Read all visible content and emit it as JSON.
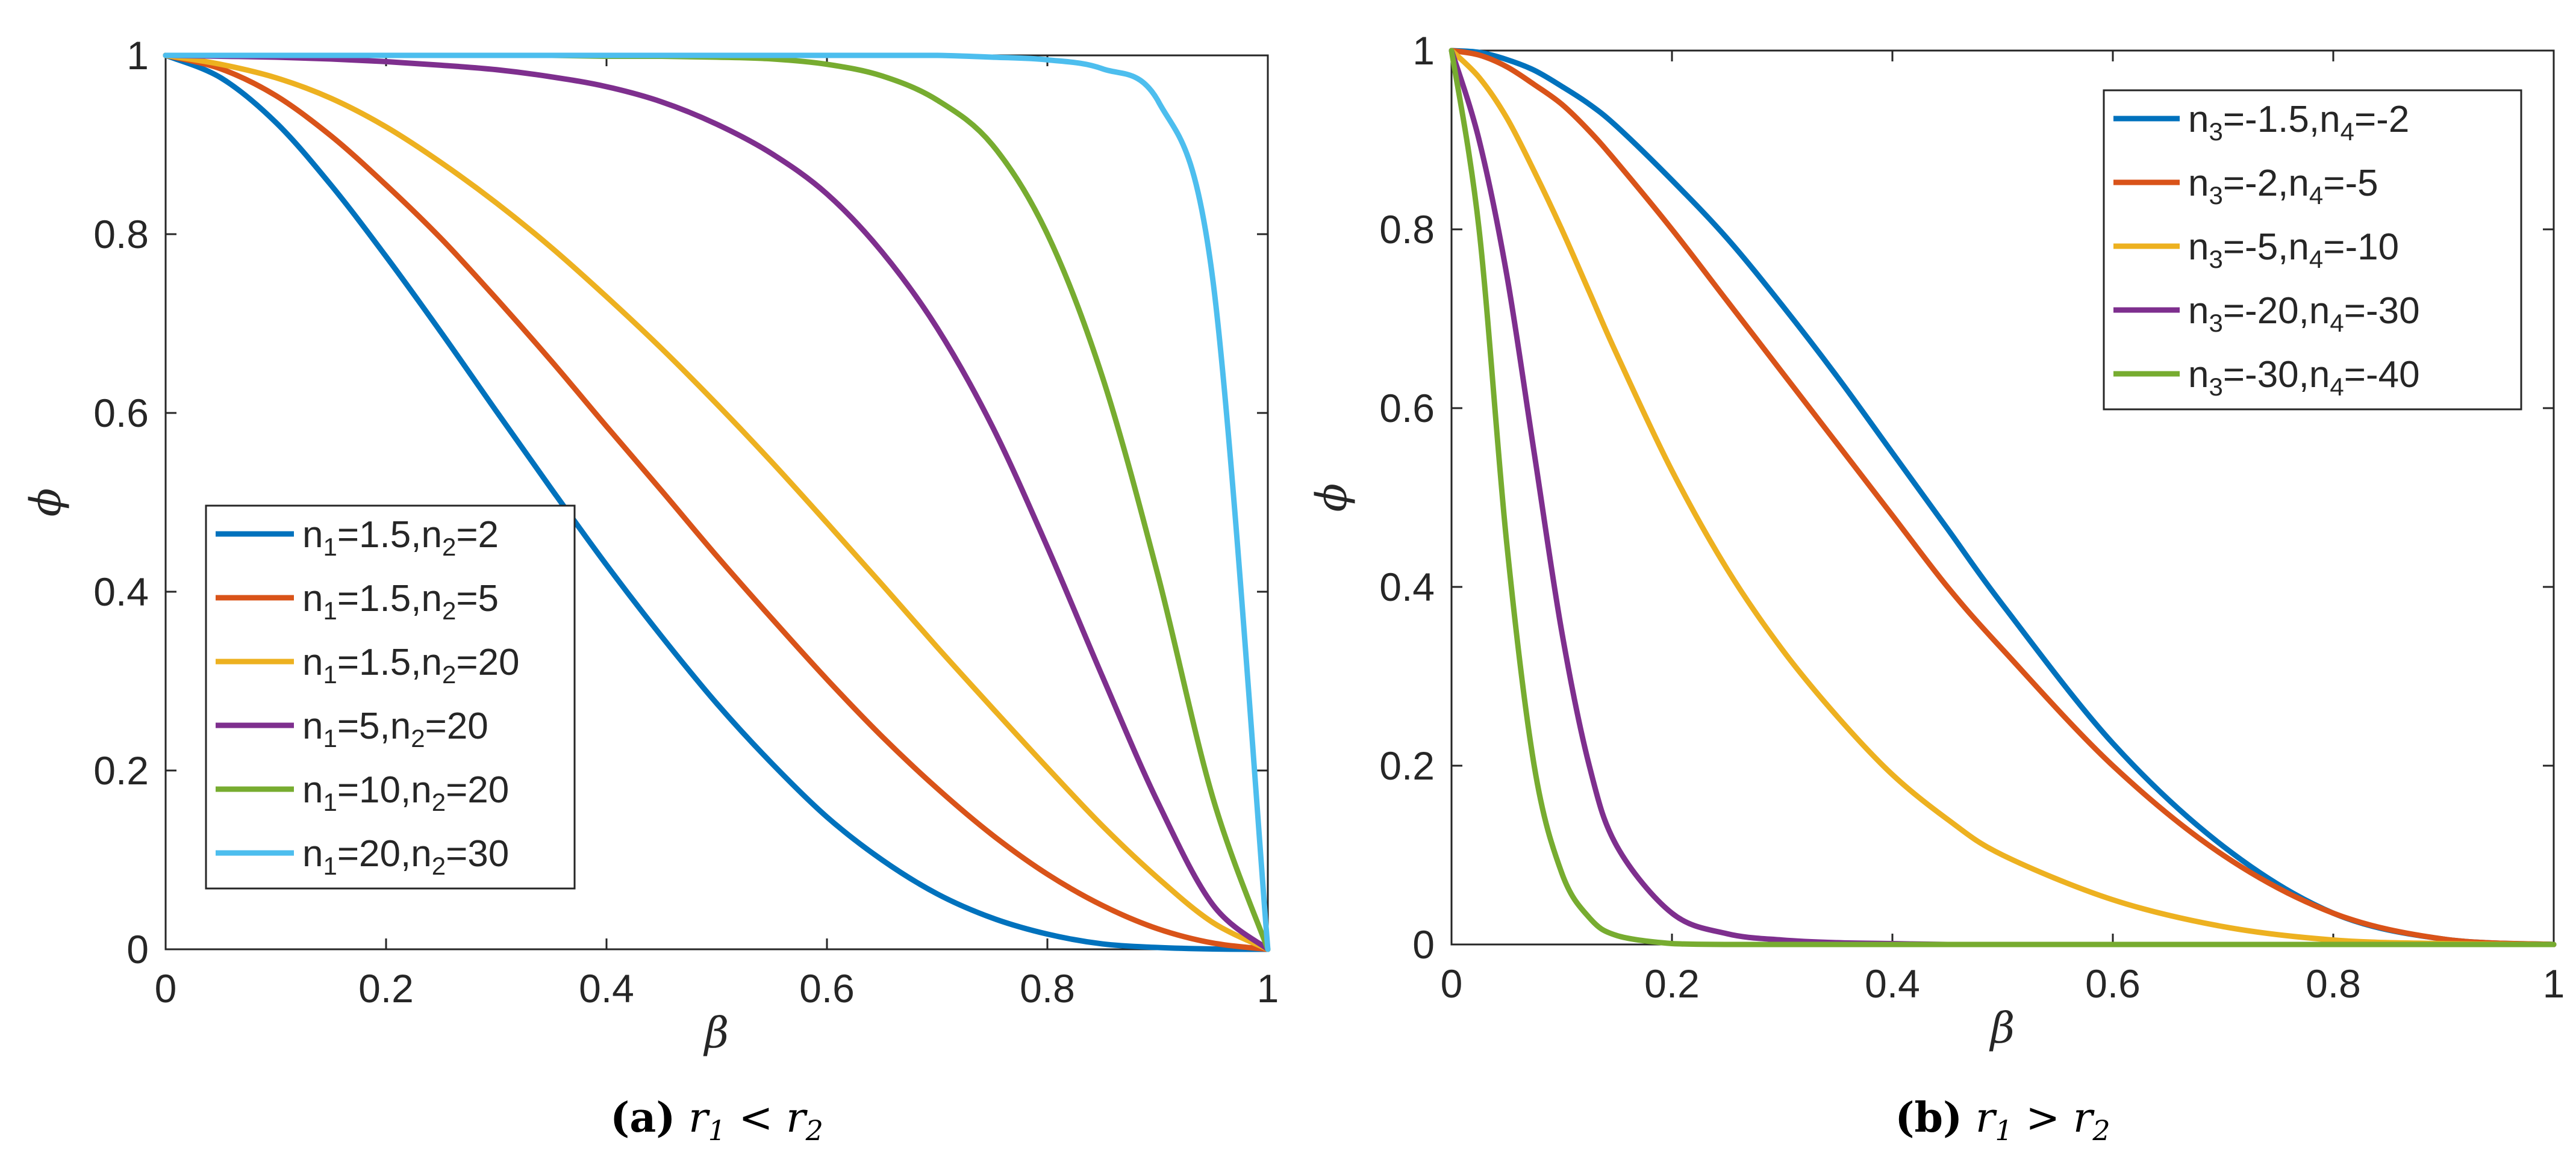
{
  "colors": {
    "axis": "#262626",
    "series": [
      "#0072BD",
      "#D95319",
      "#EDB120",
      "#7E2F8E",
      "#77AC30",
      "#4DBEEE"
    ]
  },
  "chart_data": [
    {
      "type": "line",
      "panel": "a",
      "xlabel": "β",
      "ylabel": "ϕ",
      "xlim": [
        0,
        1
      ],
      "ylim": [
        0,
        1
      ],
      "xticks": [
        0,
        0.2,
        0.4,
        0.6,
        0.8,
        1
      ],
      "yticks": [
        0,
        0.2,
        0.4,
        0.6,
        0.8,
        1
      ],
      "xtick_labels": [
        "0",
        "0.2",
        "0.4",
        "0.6",
        "0.8",
        "1"
      ],
      "ytick_labels": [
        "0",
        "0.2",
        "0.4",
        "0.6",
        "0.8",
        "1"
      ],
      "grid": false,
      "legend_position": "lower-left",
      "caption": {
        "letter": "(a)",
        "r1": "r",
        "sub1": "1",
        "op": "<",
        "r2": "r",
        "sub2": "2"
      },
      "x": [
        0,
        0.05,
        0.1,
        0.15,
        0.2,
        0.25,
        0.3,
        0.35,
        0.4,
        0.45,
        0.5,
        0.55,
        0.6,
        0.65,
        0.7,
        0.75,
        0.8,
        0.85,
        0.9,
        0.95,
        1
      ],
      "series": [
        {
          "legend": [
            [
              "n",
              "1",
              "=1.5,"
            ],
            [
              "n",
              "2",
              "=2"
            ]
          ],
          "values": [
            1.0,
            0.975,
            0.925,
            0.855,
            0.775,
            0.69,
            0.602,
            0.515,
            0.43,
            0.35,
            0.275,
            0.208,
            0.148,
            0.1,
            0.062,
            0.035,
            0.017,
            0.006,
            0.002,
            0.0003,
            0
          ]
        },
        {
          "legend": [
            [
              "n",
              "1",
              "=1.5,"
            ],
            [
              "n",
              "2",
              "=5"
            ]
          ],
          "values": [
            1.0,
            0.985,
            0.955,
            0.91,
            0.855,
            0.795,
            0.728,
            0.658,
            0.585,
            0.513,
            0.44,
            0.37,
            0.302,
            0.238,
            0.18,
            0.128,
            0.084,
            0.049,
            0.023,
            0.007,
            0
          ]
        },
        {
          "legend": [
            [
              "n",
              "1",
              "=1.5,"
            ],
            [
              "n",
              "2",
              "=20"
            ]
          ],
          "values": [
            1.0,
            0.99,
            0.975,
            0.952,
            0.92,
            0.88,
            0.835,
            0.785,
            0.73,
            0.672,
            0.61,
            0.545,
            0.477,
            0.408,
            0.338,
            0.27,
            0.203,
            0.138,
            0.08,
            0.03,
            0
          ]
        },
        {
          "legend": [
            [
              "n",
              "1",
              "=5,"
            ],
            [
              "n",
              "2",
              "=20"
            ]
          ],
          "values": [
            1.0,
            0.999,
            0.998,
            0.996,
            0.993,
            0.989,
            0.984,
            0.976,
            0.965,
            0.948,
            0.923,
            0.89,
            0.845,
            0.78,
            0.695,
            0.585,
            0.45,
            0.305,
            0.165,
            0.05,
            0
          ]
        },
        {
          "legend": [
            [
              "n",
              "1",
              "=10,"
            ],
            [
              "n",
              "2",
              "=20"
            ]
          ],
          "values": [
            1.0,
            1.0,
            1.0,
            1.0,
            1.0,
            1.0,
            1.0,
            1.0,
            0.999,
            0.999,
            0.998,
            0.996,
            0.99,
            0.977,
            0.95,
            0.9,
            0.8,
            0.64,
            0.42,
            0.17,
            0
          ]
        },
        {
          "legend": [
            [
              "n",
              "1",
              "=20,"
            ],
            [
              "n",
              "2",
              "=30"
            ]
          ],
          "values": [
            1.0,
            1.0,
            1.0,
            1.0,
            1.0,
            1.0,
            1.0,
            1.0,
            1.0,
            1.0,
            1.0,
            1.0,
            1.0,
            1.0,
            1.0,
            0.998,
            0.995,
            0.985,
            0.95,
            0.75,
            0
          ]
        }
      ]
    },
    {
      "type": "line",
      "panel": "b",
      "xlabel": "β",
      "ylabel": "ϕ",
      "xlim": [
        0,
        1
      ],
      "ylim": [
        0,
        1
      ],
      "xticks": [
        0,
        0.2,
        0.4,
        0.6,
        0.8,
        1
      ],
      "yticks": [
        0,
        0.2,
        0.4,
        0.6,
        0.8,
        1
      ],
      "xtick_labels": [
        "0",
        "0.2",
        "0.4",
        "0.6",
        "0.8",
        "1"
      ],
      "ytick_labels": [
        "0",
        "0.2",
        "0.4",
        "0.6",
        "0.8",
        "1"
      ],
      "grid": false,
      "legend_position": "top-right",
      "caption": {
        "letter": "(b)",
        "r1": "r",
        "sub1": "1",
        "op": ">",
        "r2": "r",
        "sub2": "2"
      },
      "x": [
        0,
        0.025,
        0.05,
        0.075,
        0.1,
        0.125,
        0.15,
        0.2,
        0.25,
        0.3,
        0.35,
        0.4,
        0.45,
        0.5,
        0.6,
        0.7,
        0.8,
        0.9,
        1
      ],
      "series": [
        {
          "legend": [
            [
              "n",
              "3",
              "=-1.5,"
            ],
            [
              "n",
              "4",
              "=-2"
            ]
          ],
          "values": [
            1.0,
            0.998,
            0.99,
            0.978,
            0.96,
            0.94,
            0.915,
            0.855,
            0.79,
            0.715,
            0.635,
            0.55,
            0.465,
            0.38,
            0.225,
            0.11,
            0.035,
            0.006,
            0
          ]
        },
        {
          "legend": [
            [
              "n",
              "3",
              "=-2,"
            ],
            [
              "n",
              "4",
              "=-5"
            ]
          ],
          "values": [
            1.0,
            0.995,
            0.982,
            0.962,
            0.94,
            0.91,
            0.875,
            0.8,
            0.72,
            0.64,
            0.56,
            0.48,
            0.4,
            0.33,
            0.2,
            0.1,
            0.035,
            0.006,
            0
          ]
        },
        {
          "legend": [
            [
              "n",
              "3",
              "=-5,"
            ],
            [
              "n",
              "4",
              "=-10"
            ]
          ],
          "values": [
            1.0,
            0.97,
            0.925,
            0.865,
            0.8,
            0.73,
            0.66,
            0.53,
            0.42,
            0.33,
            0.255,
            0.19,
            0.14,
            0.1,
            0.05,
            0.02,
            0.005,
            0.001,
            0
          ]
        },
        {
          "legend": [
            [
              "n",
              "3",
              "=-20,"
            ],
            [
              "n",
              "4",
              "=-30"
            ]
          ],
          "values": [
            1.0,
            0.9,
            0.75,
            0.55,
            0.35,
            0.2,
            0.11,
            0.035,
            0.012,
            0.005,
            0.002,
            0.001,
            0,
            0,
            0,
            0,
            0,
            0,
            0
          ]
        },
        {
          "legend": [
            [
              "n",
              "3",
              "=-30,"
            ],
            [
              "n",
              "4",
              "=-40"
            ]
          ],
          "values": [
            1.0,
            0.8,
            0.45,
            0.2,
            0.08,
            0.03,
            0.01,
            0.001,
            0,
            0,
            0,
            0,
            0,
            0,
            0,
            0,
            0,
            0,
            0
          ]
        }
      ]
    }
  ]
}
